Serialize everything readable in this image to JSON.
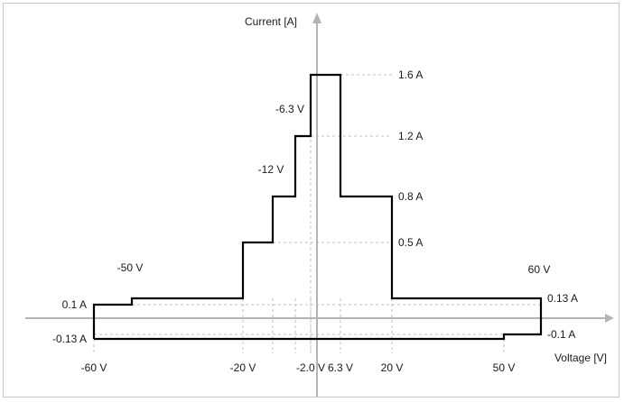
{
  "chart_data": {
    "type": "line",
    "xlabel": "Voltage [V]",
    "ylabel": "Current [A]",
    "xlim": [
      -75,
      80
    ],
    "ylim": [
      -0.35,
      2.0
    ],
    "grid": false,
    "series": [
      {
        "points": [
          [
            -60,
            -0.13
          ],
          [
            -60,
            0.1
          ],
          [
            -50,
            0.1
          ],
          [
            -50,
            0.13
          ],
          [
            -20,
            0.13
          ],
          [
            -20,
            0.5
          ],
          [
            -12,
            0.5
          ],
          [
            -12,
            0.8
          ],
          [
            -6.3,
            0.8
          ],
          [
            -6.3,
            1.2
          ],
          [
            -2.0,
            1.2
          ],
          [
            -2.0,
            1.6
          ],
          [
            6.3,
            1.6
          ],
          [
            6.3,
            0.8
          ],
          [
            20,
            0.8
          ],
          [
            20,
            0.13
          ],
          [
            60,
            0.13
          ],
          [
            60,
            -0.1
          ],
          [
            50,
            -0.1
          ],
          [
            50,
            -0.13
          ],
          [
            -60,
            -0.13
          ]
        ]
      }
    ],
    "annotations": {
      "voltage_above": [
        {
          "text": "-50 V",
          "v": -50,
          "i": 0.13
        },
        {
          "text": "-12 V",
          "v": -12,
          "i": 0.8
        },
        {
          "text": "-6.3 V",
          "v": -6.3,
          "i": 1.2
        },
        {
          "text": "60 V",
          "v": 60,
          "i": 0.13
        }
      ],
      "voltage_ticks": [
        {
          "text": "-60 V",
          "v": -60
        },
        {
          "text": "-20 V",
          "v": -20
        },
        {
          "text": "-2.0 V",
          "v": -2.0
        },
        {
          "text": "6.3 V",
          "v": 6.3
        },
        {
          "text": "20 V",
          "v": 20
        },
        {
          "text": "50 V",
          "v": 50
        }
      ],
      "current_right": [
        {
          "text": "1.6 A",
          "i": 1.6
        },
        {
          "text": "1.2 A",
          "i": 1.2
        },
        {
          "text": "0.8 A",
          "i": 0.8
        },
        {
          "text": "0.5 A",
          "i": 0.5
        },
        {
          "text": "0.13 A",
          "i": 0.13,
          "v": 60
        },
        {
          "text": "-0.1 A",
          "i": -0.1,
          "v": 60
        }
      ],
      "current_left": [
        {
          "text": "0.1 A",
          "i": 0.1
        },
        {
          "text": "-0.13 A",
          "i": -0.13
        }
      ]
    }
  }
}
